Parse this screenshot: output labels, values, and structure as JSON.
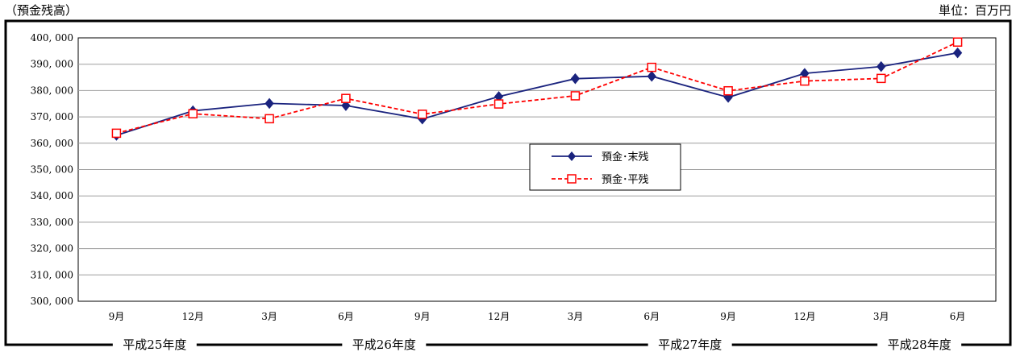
{
  "header": {
    "left_caption": "（預金残高）",
    "right_caption": "単位：百万円"
  },
  "chart_data": {
    "type": "line",
    "title": "",
    "xlabel": "",
    "ylabel": "",
    "categories": [
      "9月",
      "12月",
      "3月",
      "6月",
      "9月",
      "12月",
      "3月",
      "6月",
      "9月",
      "12月",
      "3月",
      "6月"
    ],
    "fiscal_years": [
      "平成25年度",
      "平成26年度",
      "平成27年度",
      "平成28年度"
    ],
    "ylim": [
      300000,
      400000
    ],
    "yticks": [
      300000,
      310000,
      320000,
      330000,
      340000,
      350000,
      360000,
      370000,
      380000,
      390000,
      400000
    ],
    "ytick_labels": [
      "300, 000",
      "310, 000",
      "320, 000",
      "330, 000",
      "340, 000",
      "350, 000",
      "360, 000",
      "370, 000",
      "380, 000",
      "390, 000",
      "400, 000"
    ],
    "grid": true,
    "legend_position": "center",
    "series": [
      {
        "name": "預金･末残",
        "color": "#1a237e",
        "marker": "diamond",
        "line_style": "solid",
        "values": [
          363000,
          372300,
          375100,
          374300,
          369200,
          377700,
          384500,
          385400,
          377400,
          386500,
          389100,
          394300
        ]
      },
      {
        "name": "預金･平残",
        "color": "#ff0000",
        "marker": "square",
        "line_style": "dashed",
        "values": [
          363800,
          371200,
          369300,
          377000,
          371000,
          374900,
          378000,
          388800,
          379900,
          383600,
          384600,
          398400
        ]
      }
    ]
  }
}
